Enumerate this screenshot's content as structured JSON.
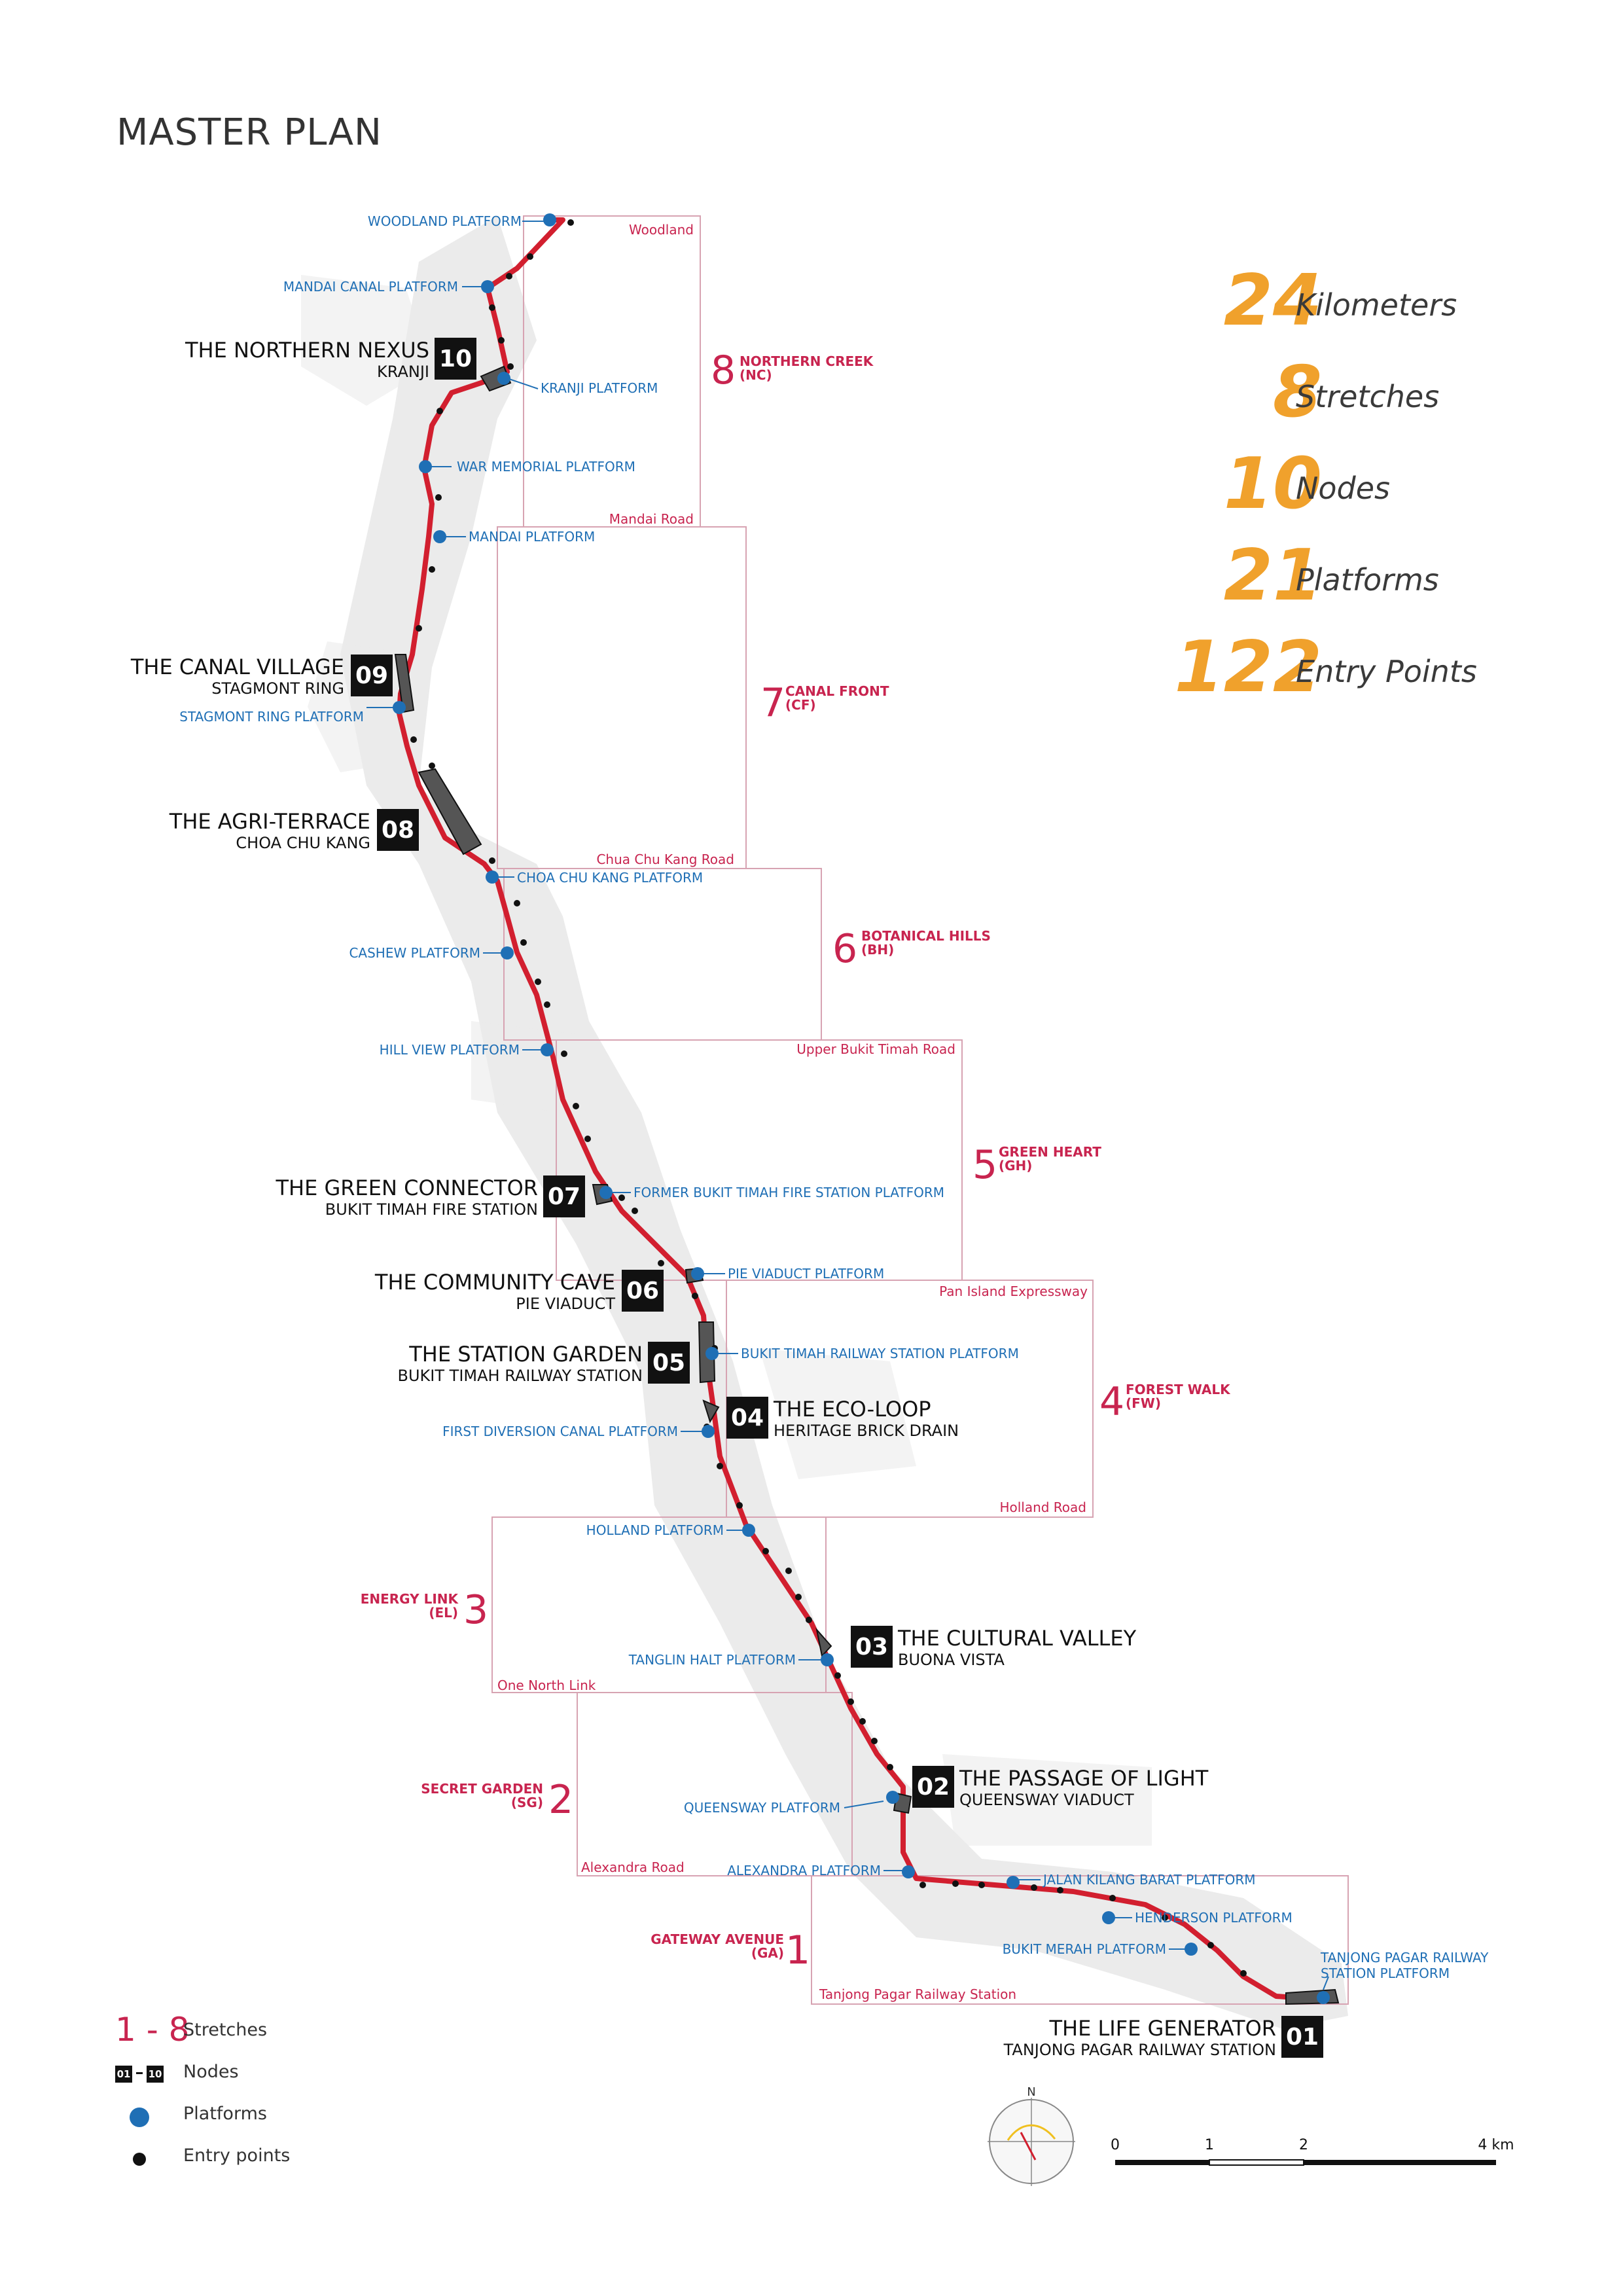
{
  "title": "MASTER PLAN",
  "colors": {
    "accent": "#f0a12c",
    "route": "#d21f2f",
    "platform": "#1f6fb5",
    "stretch": "#c8244f",
    "node": "#111111"
  },
  "stats": [
    {
      "value": "24",
      "label": "Kilometers"
    },
    {
      "value": "8",
      "label": "Stretches"
    },
    {
      "value": "10",
      "label": "Nodes"
    },
    {
      "value": "21",
      "label": "Platforms"
    },
    {
      "value": "122",
      "label": "Entry Points"
    }
  ],
  "nodes": [
    {
      "number": "10",
      "name": "THE NORTHERN NEXUS",
      "place": "KRANJI"
    },
    {
      "number": "09",
      "name": "THE CANAL VILLAGE",
      "place": "STAGMONT RING"
    },
    {
      "number": "08",
      "name": "THE AGRI-TERRACE",
      "place": "CHOA CHU KANG"
    },
    {
      "number": "07",
      "name": "THE GREEN CONNECTOR",
      "place": "BUKIT TIMAH FIRE STATION"
    },
    {
      "number": "06",
      "name": "THE COMMUNITY CAVE",
      "place": "PIE VIADUCT"
    },
    {
      "number": "05",
      "name": "THE STATION GARDEN",
      "place": "BUKIT TIMAH RAILWAY STATION"
    },
    {
      "number": "04",
      "name": "THE ECO-LOOP",
      "place": "HERITAGE BRICK DRAIN"
    },
    {
      "number": "03",
      "name": "THE CULTURAL VALLEY",
      "place": "BUONA VISTA"
    },
    {
      "number": "02",
      "name": "THE PASSAGE OF LIGHT",
      "place": "QUEENSWAY VIADUCT"
    },
    {
      "number": "01",
      "name": "THE LIFE GENERATOR",
      "place": "TANJONG PAGAR RAILWAY STATION"
    }
  ],
  "platforms": [
    "WOODLAND PLATFORM",
    "MANDAI CANAL PLATFORM",
    "KRANJI PLATFORM",
    "WAR MEMORIAL PLATFORM",
    "MANDAI PLATFORM",
    "STAGMONT RING PLATFORM",
    "CHOA CHU KANG PLATFORM",
    "CASHEW PLATFORM",
    "HILL VIEW PLATFORM",
    "FORMER BUKIT TIMAH FIRE STATION PLATFORM",
    "PIE VIADUCT PLATFORM",
    "BUKIT TIMAH RAILWAY STATION PLATFORM",
    "FIRST DIVERSION CANAL PLATFORM",
    "HOLLAND PLATFORM",
    "TANGLIN HALT PLATFORM",
    "QUEENSWAY PLATFORM",
    "ALEXANDRA PLATFORM",
    "JALAN KILANG BARAT PLATFORM",
    "HENDERSON PLATFORM",
    "BUKIT MERAH PLATFORM",
    "TANJONG PAGAR RAILWAY",
    "STATION PLATFORM"
  ],
  "stretches": [
    {
      "number": "8",
      "name": "NORTHERN CREEK",
      "code": "(NC)"
    },
    {
      "number": "7",
      "name": "CANAL FRONT",
      "code": "(CF)"
    },
    {
      "number": "6",
      "name": "BOTANICAL HILLS",
      "code": "(BH)"
    },
    {
      "number": "5",
      "name": "GREEN HEART",
      "code": "(GH)"
    },
    {
      "number": "4",
      "name": "FOREST WALK",
      "code": "(FW)"
    },
    {
      "number": "3",
      "name": "ENERGY LINK",
      "code": "(EL)"
    },
    {
      "number": "2",
      "name": "SECRET GARDEN",
      "code": "(SG)"
    },
    {
      "number": "1",
      "name": "GATEWAY AVENUE",
      "code": "(GA)"
    }
  ],
  "roads": [
    "Woodland",
    "Mandai Road",
    "Chua Chu Kang Road",
    "Upper Bukit Timah Road",
    "Pan Island Expressway",
    "Holland Road",
    "One North Link",
    "Alexandra Road",
    "Tanjong Pagar Railway Station"
  ],
  "legend": {
    "stretches_symbol": "1 - 8",
    "stretches_label": "Stretches",
    "nodes_from": "01",
    "nodes_to": "10",
    "nodes_label": "Nodes",
    "platforms_label": "Platforms",
    "entry_label": "Entry points"
  },
  "compass": {
    "north": "N"
  },
  "scale": {
    "ticks": [
      "0",
      "1",
      "2",
      "4 km"
    ]
  }
}
